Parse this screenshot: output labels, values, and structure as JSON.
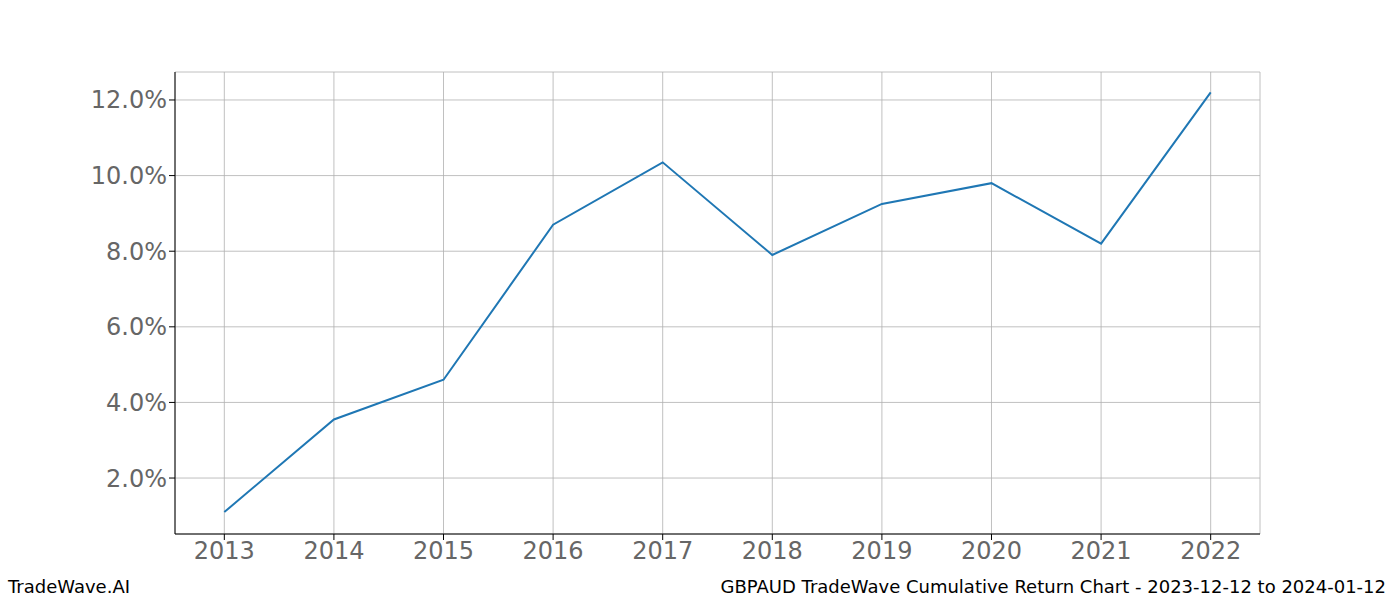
{
  "chart_data": {
    "type": "line",
    "title": "GBPAUD TradeWave Cumulative Return Chart - 2023-12-12 to 2024-01-12",
    "annotations": [
      "TradeWave.AI"
    ],
    "x": [
      2013,
      2014,
      2015,
      2016,
      2017,
      2018,
      2019,
      2020,
      2021,
      2022
    ],
    "values": [
      1.1,
      3.55,
      4.6,
      8.7,
      10.35,
      7.9,
      9.25,
      9.8,
      8.2,
      12.2
    ],
    "color": "#1f77b4",
    "xlim": [
      2012.55,
      2022.45
    ],
    "xticks": [
      2013,
      2014,
      2015,
      2016,
      2017,
      2018,
      2019,
      2020,
      2021,
      2022
    ],
    "ylim": [
      0.52,
      12.74
    ],
    "yticks": [
      {
        "value": 2,
        "label": "2.0%"
      },
      {
        "value": 4,
        "label": "4.0%"
      },
      {
        "value": 6,
        "label": "6.0%"
      },
      {
        "value": 8,
        "label": "8.0%"
      },
      {
        "value": 10,
        "label": "10.0%"
      },
      {
        "value": 12,
        "label": "12.0%"
      }
    ],
    "grid": true
  }
}
